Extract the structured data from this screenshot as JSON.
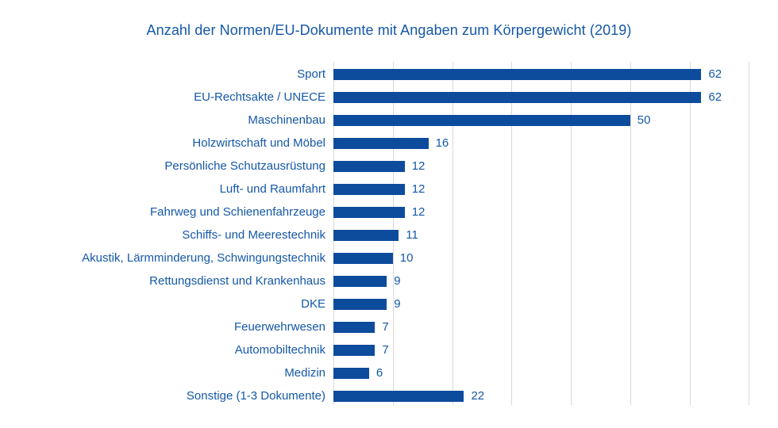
{
  "chart_data": {
    "type": "bar",
    "orientation": "horizontal",
    "title": "Anzahl der Normen/EU-Dokumente mit Angaben zum Körpergewicht (2019)",
    "categories": [
      "Sport",
      "EU-Rechtsakte / UNECE",
      "Maschinenbau",
      "Holzwirtschaft und Möbel",
      "Persönliche Schutzausrüstung",
      "Luft- und Raumfahrt",
      "Fahrweg und Schienenfahrzeuge",
      "Schiffs- und Meerestechnik",
      "Akustik, Lärmminderung, Schwingungstechnik",
      "Rettungsdienst und Krankenhaus",
      "DKE",
      "Feuerwehrwesen",
      "Automobiltechnik",
      "Medizin",
      "Sonstige (1-3 Dokumente)"
    ],
    "values": [
      62,
      62,
      50,
      16,
      12,
      12,
      12,
      11,
      10,
      9,
      9,
      7,
      7,
      6,
      22
    ],
    "value_labels": [
      "62",
      "62",
      "50",
      "16",
      "12",
      "12",
      "12",
      "11",
      "10",
      "9",
      "9",
      "7",
      "7",
      "6",
      "22"
    ],
    "xlabel": "",
    "ylabel": "",
    "xlim": [
      0,
      70
    ],
    "gridlines": [
      0,
      10,
      20,
      30,
      40,
      50,
      60,
      70
    ],
    "grid": "vertical-only",
    "tick_labels_shown": false,
    "legend_position": "none",
    "colors": {
      "bar": "#0d4b9d",
      "text": "#1558a8",
      "grid": "#d9d9d9",
      "background": "#ffffff"
    }
  }
}
